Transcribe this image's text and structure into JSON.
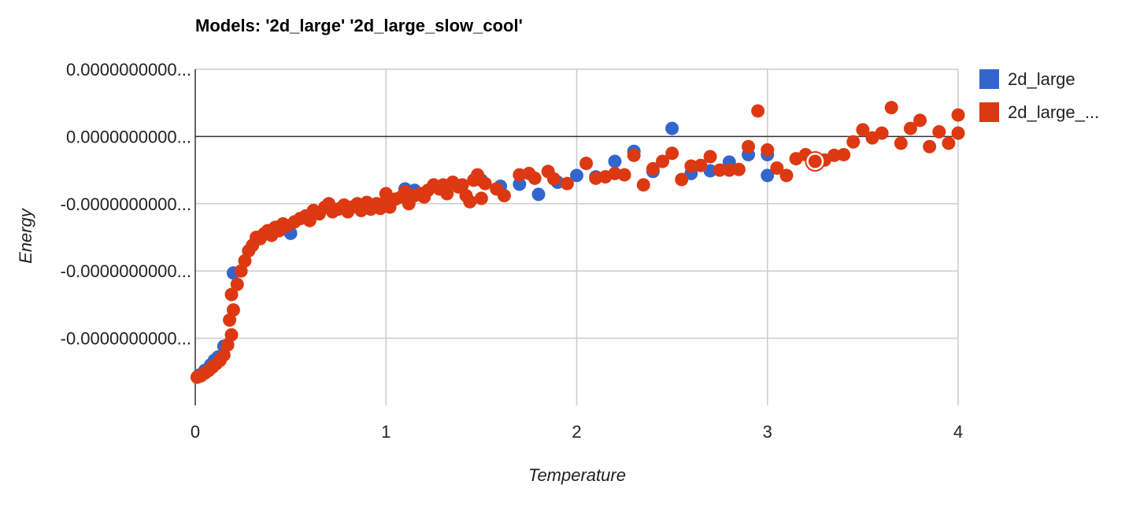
{
  "chart_data": {
    "type": "scatter",
    "title": "Models: '2d_large' '2d_large_slow_cool'",
    "xlabel": "Temperature",
    "ylabel": "Energy",
    "xlim": [
      0,
      4
    ],
    "ylim": [
      -4,
      1
    ],
    "xticks": [
      0,
      1,
      2,
      3,
      4
    ],
    "xtick_labels": [
      "0",
      "1",
      "2",
      "3",
      "4"
    ],
    "yticks": [
      1,
      0,
      -1,
      -2,
      -3
    ],
    "ytick_labels": [
      "0.0000000000...",
      "0.0000000000...",
      "-0.0000000000...",
      "-0.0000000000...",
      "-0.0000000000..."
    ],
    "grid": true,
    "legend_position": "right",
    "series": [
      {
        "name": "2d_large",
        "color": "#3366cc",
        "points": [
          [
            0.02,
            -3.55
          ],
          [
            0.05,
            -3.48
          ],
          [
            0.08,
            -3.4
          ],
          [
            0.1,
            -3.33
          ],
          [
            0.12,
            -3.28
          ],
          [
            0.15,
            -3.12
          ],
          [
            0.2,
            -2.03
          ],
          [
            0.5,
            -1.44
          ],
          [
            1.1,
            -0.78
          ],
          [
            1.15,
            -0.8
          ],
          [
            1.5,
            -0.65
          ],
          [
            1.6,
            -0.74
          ],
          [
            1.7,
            -0.71
          ],
          [
            1.8,
            -0.86
          ],
          [
            1.9,
            -0.68
          ],
          [
            2.0,
            -0.58
          ],
          [
            2.1,
            -0.6
          ],
          [
            2.2,
            -0.37
          ],
          [
            2.3,
            -0.22
          ],
          [
            2.4,
            -0.52
          ],
          [
            2.5,
            0.12
          ],
          [
            2.6,
            -0.55
          ],
          [
            2.7,
            -0.51
          ],
          [
            2.8,
            -0.38
          ],
          [
            2.9,
            -0.27
          ],
          [
            3.0,
            -0.27
          ],
          [
            3.0,
            -0.58
          ]
        ]
      },
      {
        "name": "2d_large_...",
        "color": "#dc3912",
        "points": [
          [
            0.01,
            -3.58
          ],
          [
            0.03,
            -3.56
          ],
          [
            0.05,
            -3.52
          ],
          [
            0.07,
            -3.48
          ],
          [
            0.09,
            -3.43
          ],
          [
            0.11,
            -3.38
          ],
          [
            0.13,
            -3.33
          ],
          [
            0.15,
            -3.25
          ],
          [
            0.17,
            -3.1
          ],
          [
            0.19,
            -2.95
          ],
          [
            0.18,
            -2.73
          ],
          [
            0.2,
            -2.58
          ],
          [
            0.19,
            -2.35
          ],
          [
            0.22,
            -2.2
          ],
          [
            0.24,
            -2.0
          ],
          [
            0.26,
            -1.85
          ],
          [
            0.28,
            -1.7
          ],
          [
            0.3,
            -1.62
          ],
          [
            0.32,
            -1.5
          ],
          [
            0.34,
            -1.52
          ],
          [
            0.36,
            -1.45
          ],
          [
            0.38,
            -1.4
          ],
          [
            0.4,
            -1.47
          ],
          [
            0.42,
            -1.35
          ],
          [
            0.44,
            -1.4
          ],
          [
            0.46,
            -1.3
          ],
          [
            0.48,
            -1.33
          ],
          [
            0.52,
            -1.27
          ],
          [
            0.55,
            -1.22
          ],
          [
            0.58,
            -1.18
          ],
          [
            0.6,
            -1.25
          ],
          [
            0.62,
            -1.1
          ],
          [
            0.65,
            -1.15
          ],
          [
            0.68,
            -1.05
          ],
          [
            0.7,
            -1.0
          ],
          [
            0.72,
            -1.12
          ],
          [
            0.75,
            -1.08
          ],
          [
            0.78,
            -1.02
          ],
          [
            0.8,
            -1.12
          ],
          [
            0.82,
            -1.05
          ],
          [
            0.85,
            -1.0
          ],
          [
            0.87,
            -1.1
          ],
          [
            0.9,
            -0.98
          ],
          [
            0.92,
            -1.08
          ],
          [
            0.95,
            -1.0
          ],
          [
            0.97,
            -1.07
          ],
          [
            1.0,
            -0.95
          ],
          [
            1.0,
            -0.85
          ],
          [
            1.02,
            -1.05
          ],
          [
            1.05,
            -0.93
          ],
          [
            1.08,
            -0.9
          ],
          [
            1.1,
            -0.82
          ],
          [
            1.12,
            -1.0
          ],
          [
            1.15,
            -0.88
          ],
          [
            1.18,
            -0.85
          ],
          [
            1.2,
            -0.9
          ],
          [
            1.22,
            -0.8
          ],
          [
            1.25,
            -0.72
          ],
          [
            1.28,
            -0.78
          ],
          [
            1.3,
            -0.72
          ],
          [
            1.32,
            -0.85
          ],
          [
            1.35,
            -0.68
          ],
          [
            1.38,
            -0.75
          ],
          [
            1.4,
            -0.72
          ],
          [
            1.42,
            -0.88
          ],
          [
            1.44,
            -0.97
          ],
          [
            1.46,
            -0.65
          ],
          [
            1.48,
            -0.57
          ],
          [
            1.5,
            -0.92
          ],
          [
            1.52,
            -0.7
          ],
          [
            1.58,
            -0.78
          ],
          [
            1.62,
            -0.88
          ],
          [
            1.7,
            -0.57
          ],
          [
            1.75,
            -0.55
          ],
          [
            1.78,
            -0.62
          ],
          [
            1.85,
            -0.52
          ],
          [
            1.88,
            -0.63
          ],
          [
            1.95,
            -0.7
          ],
          [
            2.05,
            -0.4
          ],
          [
            2.1,
            -0.62
          ],
          [
            2.15,
            -0.6
          ],
          [
            2.2,
            -0.55
          ],
          [
            2.25,
            -0.57
          ],
          [
            2.3,
            -0.28
          ],
          [
            2.35,
            -0.72
          ],
          [
            2.4,
            -0.48
          ],
          [
            2.45,
            -0.37
          ],
          [
            2.5,
            -0.25
          ],
          [
            2.55,
            -0.64
          ],
          [
            2.6,
            -0.44
          ],
          [
            2.65,
            -0.43
          ],
          [
            2.7,
            -0.3
          ],
          [
            2.75,
            -0.5
          ],
          [
            2.8,
            -0.5
          ],
          [
            2.85,
            -0.49
          ],
          [
            2.9,
            -0.15
          ],
          [
            2.95,
            0.38
          ],
          [
            3.0,
            -0.2
          ],
          [
            3.05,
            -0.47
          ],
          [
            3.1,
            -0.58
          ],
          [
            3.15,
            -0.33
          ],
          [
            3.2,
            -0.27
          ],
          [
            3.25,
            -0.37
          ],
          [
            3.3,
            -0.35
          ],
          [
            3.35,
            -0.28
          ],
          [
            3.4,
            -0.27
          ],
          [
            3.45,
            -0.08
          ],
          [
            3.5,
            0.1
          ],
          [
            3.55,
            -0.02
          ],
          [
            3.6,
            0.05
          ],
          [
            3.65,
            0.43
          ],
          [
            3.7,
            -0.1
          ],
          [
            3.75,
            0.12
          ],
          [
            3.8,
            0.24
          ],
          [
            3.85,
            -0.15
          ],
          [
            3.9,
            0.07
          ],
          [
            3.95,
            -0.1
          ],
          [
            4.0,
            0.32
          ],
          [
            4.0,
            0.05
          ]
        ]
      }
    ],
    "highlighted_point": {
      "series": "2d_large_...",
      "x": 3.25,
      "y": -0.37
    }
  }
}
